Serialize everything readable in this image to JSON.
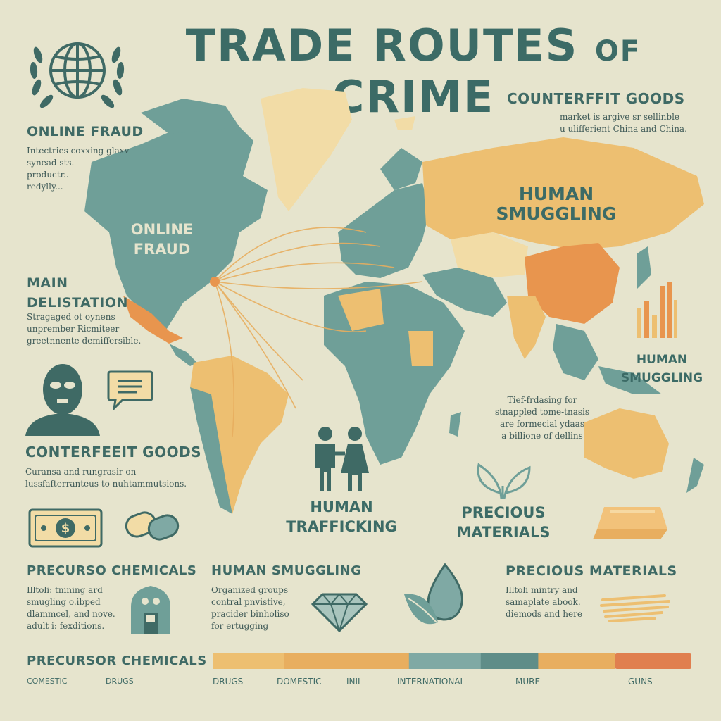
{
  "header": {
    "title_main": "TRADE ROUTES",
    "title_of": "OF",
    "title_end": "CRIME"
  },
  "sections": {
    "online_fraud": {
      "heading": "ONLINE FRAUD",
      "lines": [
        "Intectries coxxing glaxv",
        "synead sts.",
        "productr..",
        "redylly..."
      ]
    },
    "counterfeit_top": {
      "heading": "COUNTERFFIT GOODS",
      "lines": [
        "market is argive sr sellinble",
        "u ulifferient China and China."
      ]
    },
    "main_delistation": {
      "heading1": "MAIN",
      "heading2": "DELISTATION",
      "lines": [
        "Stragaged ot oynens",
        "unprember Ricmiteer",
        "greetnnente demiffersible."
      ]
    },
    "conterfeeit_goods": {
      "heading": "CONTERFEEIT GOODS",
      "lines": [
        "Curansa and rungrasir on",
        "lussfafterranteus to nuhtammutsions."
      ]
    },
    "precurso": {
      "heading": "PRECURSO CHEMICALS",
      "lines": [
        "Illtoli: tnining ard",
        "smugling o.ibped",
        "dlammcel, and nove.",
        "adult i: fexditions."
      ]
    },
    "human_smuggling_bottom": {
      "heading": "HUMAN SMUGGLING",
      "lines": [
        "Organized groups",
        "contral pnvistive,",
        "pracider binholiso",
        "for ertugging"
      ]
    },
    "precious_bottom": {
      "heading": "PRECIOUS MATERIALS",
      "lines": [
        "Illtoli mintry and",
        "samaplate abook.",
        "diemods and here"
      ]
    },
    "tief": {
      "lines": [
        "Tief-frdasing for",
        "stnappled tome-tnasis",
        "are formecial ydaas",
        "a billione of dellins"
      ]
    },
    "human_smuggling_right": {
      "heading1": "HUMAN",
      "heading2": "SMUGGLING"
    }
  },
  "map_labels": {
    "online_fraud": [
      "ONLINE",
      "FRAUD"
    ],
    "human_smuggling": [
      "HUMAN",
      "SMUGGLING"
    ],
    "human_trafficking": [
      "HUMAN",
      "TRAFFICKING"
    ],
    "precious_materials": [
      "PRECIOUS",
      "MATERIALS"
    ]
  },
  "legend": {
    "heading": "PRECURSOR CHEMICALS",
    "left_labels": [
      "COMESTIC",
      "DRUGS"
    ],
    "scale_labels": [
      "DRUGS",
      "DOMESTIC",
      "INIL",
      "INTERNATIONAL",
      "MURE",
      "GUNS"
    ],
    "segments": [
      {
        "color": "#edbf71",
        "value": 0.15
      },
      {
        "color": "#e8ae5f",
        "value": 0.26
      },
      {
        "color": "#7fa9a4",
        "value": 0.15
      },
      {
        "color": "#5f8d88",
        "value": 0.12
      },
      {
        "color": "#e8ae5f",
        "value": 0.16
      },
      {
        "color": "#e07f4f",
        "value": 0.16
      }
    ]
  },
  "colors": {
    "teal": "#6f9f98",
    "dark_teal": "#3f6a65",
    "amber": "#edbf71",
    "orange": "#e8954e",
    "sand": "#f2dca6",
    "background": "#e6e4cd"
  },
  "icons": [
    "un-globe-emblem-icon",
    "masked-person-icon",
    "speech-bubble-icon",
    "dollar-bill-icon",
    "pills-icon",
    "people-couple-icon",
    "leaf-icon",
    "gold-bar-icon",
    "bar-chart-icon",
    "house-icon",
    "diamond-icon",
    "drop-leaf-icon",
    "paint-stroke-icon"
  ]
}
